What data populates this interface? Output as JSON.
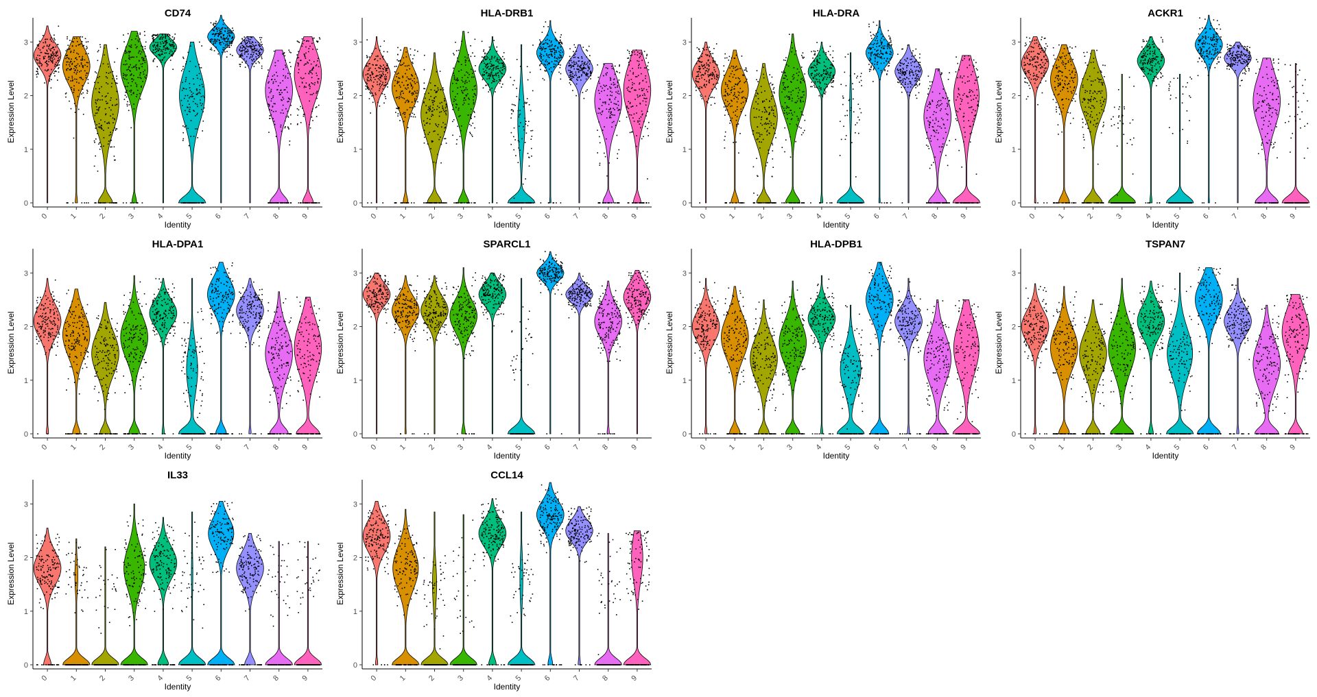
{
  "figure": {
    "xlabel": "Identity",
    "ylabel": "Expression Level",
    "categories": [
      "0",
      "1",
      "2",
      "3",
      "4",
      "5",
      "6",
      "7",
      "8",
      "9"
    ],
    "yticks": [
      0,
      1,
      2,
      3
    ],
    "ylim": [
      0,
      3.4
    ],
    "palette": [
      "#F8766D",
      "#D89000",
      "#A3A500",
      "#39B600",
      "#00BF7D",
      "#00BFC4",
      "#00B0F6",
      "#9590FF",
      "#E76BF3",
      "#FF62BC"
    ],
    "point_color": "#000000"
  },
  "chart_data": [
    {
      "type": "violin",
      "title": "CD74",
      "series": [
        {
          "name": "0",
          "zero_fraction": 0.01,
          "center": 2.75,
          "spread": 0.22,
          "max": 3.3
        },
        {
          "name": "1",
          "zero_fraction": 0.05,
          "center": 2.55,
          "spread": 0.32,
          "max": 3.1
        },
        {
          "name": "2",
          "zero_fraction": 0.25,
          "center": 1.85,
          "spread": 0.5,
          "max": 2.95
        },
        {
          "name": "3",
          "zero_fraction": 0.1,
          "center": 2.5,
          "spread": 0.4,
          "max": 3.2
        },
        {
          "name": "4",
          "zero_fraction": 0.0,
          "center": 2.9,
          "spread": 0.15,
          "max": 3.15
        },
        {
          "name": "5",
          "zero_fraction": 0.4,
          "center": 2.0,
          "spread": 0.5,
          "max": 3.0
        },
        {
          "name": "6",
          "zero_fraction": 0.0,
          "center": 3.1,
          "spread": 0.15,
          "max": 3.5
        },
        {
          "name": "7",
          "zero_fraction": 0.0,
          "center": 2.85,
          "spread": 0.15,
          "max": 3.1
        },
        {
          "name": "8",
          "zero_fraction": 0.3,
          "center": 2.1,
          "spread": 0.45,
          "max": 2.85
        },
        {
          "name": "9",
          "zero_fraction": 0.2,
          "center": 2.4,
          "spread": 0.45,
          "max": 3.1
        }
      ]
    },
    {
      "type": "violin",
      "title": "HLA-DRB1",
      "series": [
        {
          "name": "0",
          "zero_fraction": 0.02,
          "center": 2.4,
          "spread": 0.25,
          "max": 3.1
        },
        {
          "name": "1",
          "zero_fraction": 0.1,
          "center": 2.15,
          "spread": 0.35,
          "max": 2.9
        },
        {
          "name": "2",
          "zero_fraction": 0.25,
          "center": 1.65,
          "spread": 0.45,
          "max": 2.8
        },
        {
          "name": "3",
          "zero_fraction": 0.2,
          "center": 2.1,
          "spread": 0.45,
          "max": 3.2
        },
        {
          "name": "4",
          "zero_fraction": 0.02,
          "center": 2.5,
          "spread": 0.2,
          "max": 3.1
        },
        {
          "name": "5",
          "zero_fraction": 0.7,
          "center": 1.5,
          "spread": 0.5,
          "max": 2.95
        },
        {
          "name": "6",
          "zero_fraction": 0.03,
          "center": 2.8,
          "spread": 0.2,
          "max": 3.4
        },
        {
          "name": "7",
          "zero_fraction": 0.0,
          "center": 2.5,
          "spread": 0.2,
          "max": 2.95
        },
        {
          "name": "8",
          "zero_fraction": 0.2,
          "center": 1.9,
          "spread": 0.45,
          "max": 2.6
        },
        {
          "name": "9",
          "zero_fraction": 0.15,
          "center": 2.1,
          "spread": 0.5,
          "max": 2.85
        }
      ]
    },
    {
      "type": "violin",
      "title": "HLA-DRA",
      "series": [
        {
          "name": "0",
          "zero_fraction": 0.02,
          "center": 2.4,
          "spread": 0.25,
          "max": 3.0
        },
        {
          "name": "1",
          "zero_fraction": 0.15,
          "center": 2.1,
          "spread": 0.35,
          "max": 2.85
        },
        {
          "name": "2",
          "zero_fraction": 0.25,
          "center": 1.6,
          "spread": 0.45,
          "max": 2.6
        },
        {
          "name": "3",
          "zero_fraction": 0.25,
          "center": 2.05,
          "spread": 0.45,
          "max": 3.15
        },
        {
          "name": "4",
          "zero_fraction": 0.05,
          "center": 2.45,
          "spread": 0.2,
          "max": 3.0
        },
        {
          "name": "5",
          "zero_fraction": 0.9,
          "center": 1.8,
          "spread": 0.45,
          "max": 2.8
        },
        {
          "name": "6",
          "zero_fraction": 0.03,
          "center": 2.8,
          "spread": 0.2,
          "max": 3.4
        },
        {
          "name": "7",
          "zero_fraction": 0.02,
          "center": 2.45,
          "spread": 0.2,
          "max": 2.95
        },
        {
          "name": "8",
          "zero_fraction": 0.3,
          "center": 1.6,
          "spread": 0.45,
          "max": 2.5
        },
        {
          "name": "9",
          "zero_fraction": 0.4,
          "center": 2.0,
          "spread": 0.5,
          "max": 2.75
        }
      ]
    },
    {
      "type": "violin",
      "title": "ACKR1",
      "series": [
        {
          "name": "0",
          "zero_fraction": 0.03,
          "center": 2.6,
          "spread": 0.25,
          "max": 3.1
        },
        {
          "name": "1",
          "zero_fraction": 0.2,
          "center": 2.3,
          "spread": 0.35,
          "max": 2.95
        },
        {
          "name": "2",
          "zero_fraction": 0.3,
          "center": 2.0,
          "spread": 0.4,
          "max": 2.85
        },
        {
          "name": "3",
          "zero_fraction": 0.97,
          "center": 1.6,
          "spread": 0.5,
          "max": 2.4
        },
        {
          "name": "4",
          "zero_fraction": 0.05,
          "center": 2.65,
          "spread": 0.2,
          "max": 3.1
        },
        {
          "name": "5",
          "zero_fraction": 0.98,
          "center": 1.8,
          "spread": 0.5,
          "max": 2.4
        },
        {
          "name": "6",
          "zero_fraction": 0.03,
          "center": 2.95,
          "spread": 0.2,
          "max": 3.5
        },
        {
          "name": "7",
          "zero_fraction": 0.0,
          "center": 2.7,
          "spread": 0.15,
          "max": 3.0
        },
        {
          "name": "8",
          "zero_fraction": 0.35,
          "center": 1.9,
          "spread": 0.5,
          "max": 2.7
        },
        {
          "name": "9",
          "zero_fraction": 0.97,
          "center": 1.8,
          "spread": 0.5,
          "max": 2.6
        }
      ]
    },
    {
      "type": "violin",
      "title": "HLA-DPA1",
      "series": [
        {
          "name": "0",
          "zero_fraction": 0.05,
          "center": 2.1,
          "spread": 0.3,
          "max": 2.9
        },
        {
          "name": "1",
          "zero_fraction": 0.15,
          "center": 1.85,
          "spread": 0.4,
          "max": 2.7
        },
        {
          "name": "2",
          "zero_fraction": 0.2,
          "center": 1.5,
          "spread": 0.4,
          "max": 2.45
        },
        {
          "name": "3",
          "zero_fraction": 0.2,
          "center": 1.8,
          "spread": 0.4,
          "max": 2.95
        },
        {
          "name": "4",
          "zero_fraction": 0.05,
          "center": 2.25,
          "spread": 0.25,
          "max": 2.9
        },
        {
          "name": "5",
          "zero_fraction": 0.6,
          "center": 1.2,
          "spread": 0.45,
          "max": 2.9
        },
        {
          "name": "6",
          "zero_fraction": 0.2,
          "center": 2.6,
          "spread": 0.3,
          "max": 3.2
        },
        {
          "name": "7",
          "zero_fraction": 0.05,
          "center": 2.3,
          "spread": 0.25,
          "max": 2.9
        },
        {
          "name": "8",
          "zero_fraction": 0.3,
          "center": 1.5,
          "spread": 0.45,
          "max": 2.65
        },
        {
          "name": "9",
          "zero_fraction": 0.35,
          "center": 1.6,
          "spread": 0.5,
          "max": 2.55
        }
      ]
    },
    {
      "type": "violin",
      "title": "SPARCL1",
      "series": [
        {
          "name": "0",
          "zero_fraction": 0.0,
          "center": 2.6,
          "spread": 0.2,
          "max": 3.0
        },
        {
          "name": "1",
          "zero_fraction": 0.03,
          "center": 2.3,
          "spread": 0.25,
          "max": 2.95
        },
        {
          "name": "2",
          "zero_fraction": 0.02,
          "center": 2.3,
          "spread": 0.25,
          "max": 2.95
        },
        {
          "name": "3",
          "zero_fraction": 0.08,
          "center": 2.2,
          "spread": 0.3,
          "max": 3.1
        },
        {
          "name": "4",
          "zero_fraction": 0.0,
          "center": 2.6,
          "spread": 0.2,
          "max": 3.0
        },
        {
          "name": "5",
          "zero_fraction": 0.97,
          "center": 1.5,
          "spread": 0.5,
          "max": 2.9
        },
        {
          "name": "6",
          "zero_fraction": 0.02,
          "center": 3.0,
          "spread": 0.15,
          "max": 3.4
        },
        {
          "name": "7",
          "zero_fraction": 0.0,
          "center": 2.6,
          "spread": 0.15,
          "max": 3.0
        },
        {
          "name": "8",
          "zero_fraction": 0.05,
          "center": 2.1,
          "spread": 0.3,
          "max": 2.85
        },
        {
          "name": "9",
          "zero_fraction": 0.0,
          "center": 2.55,
          "spread": 0.25,
          "max": 3.05
        }
      ]
    },
    {
      "type": "violin",
      "title": "HLA-DPB1",
      "series": [
        {
          "name": "0",
          "zero_fraction": 0.05,
          "center": 2.0,
          "spread": 0.3,
          "max": 2.9
        },
        {
          "name": "1",
          "zero_fraction": 0.2,
          "center": 1.8,
          "spread": 0.4,
          "max": 2.75
        },
        {
          "name": "2",
          "zero_fraction": 0.2,
          "center": 1.4,
          "spread": 0.4,
          "max": 2.5
        },
        {
          "name": "3",
          "zero_fraction": 0.25,
          "center": 1.7,
          "spread": 0.4,
          "max": 2.85
        },
        {
          "name": "4",
          "zero_fraction": 0.05,
          "center": 2.15,
          "spread": 0.25,
          "max": 2.95
        },
        {
          "name": "5",
          "zero_fraction": 0.45,
          "center": 1.2,
          "spread": 0.4,
          "max": 2.4
        },
        {
          "name": "6",
          "zero_fraction": 0.3,
          "center": 2.5,
          "spread": 0.35,
          "max": 3.2
        },
        {
          "name": "7",
          "zero_fraction": 0.05,
          "center": 2.1,
          "spread": 0.25,
          "max": 2.9
        },
        {
          "name": "8",
          "zero_fraction": 0.3,
          "center": 1.4,
          "spread": 0.45,
          "max": 2.5
        },
        {
          "name": "9",
          "zero_fraction": 0.4,
          "center": 1.6,
          "spread": 0.5,
          "max": 2.5
        }
      ]
    },
    {
      "type": "violin",
      "title": "TSPAN7",
      "series": [
        {
          "name": "0",
          "zero_fraction": 0.05,
          "center": 2.0,
          "spread": 0.3,
          "max": 2.8
        },
        {
          "name": "1",
          "zero_fraction": 0.2,
          "center": 1.6,
          "spread": 0.4,
          "max": 2.75
        },
        {
          "name": "2",
          "zero_fraction": 0.25,
          "center": 1.5,
          "spread": 0.4,
          "max": 2.5
        },
        {
          "name": "3",
          "zero_fraction": 0.35,
          "center": 1.6,
          "spread": 0.45,
          "max": 2.9
        },
        {
          "name": "4",
          "zero_fraction": 0.1,
          "center": 2.1,
          "spread": 0.3,
          "max": 2.85
        },
        {
          "name": "5",
          "zero_fraction": 0.4,
          "center": 1.5,
          "spread": 0.45,
          "max": 3.0
        },
        {
          "name": "6",
          "zero_fraction": 0.35,
          "center": 2.5,
          "spread": 0.35,
          "max": 3.1
        },
        {
          "name": "7",
          "zero_fraction": 0.05,
          "center": 2.1,
          "spread": 0.25,
          "max": 2.9
        },
        {
          "name": "8",
          "zero_fraction": 0.35,
          "center": 1.3,
          "spread": 0.45,
          "max": 2.4
        },
        {
          "name": "9",
          "zero_fraction": 0.25,
          "center": 1.9,
          "spread": 0.45,
          "max": 2.6
        }
      ]
    },
    {
      "type": "violin",
      "title": "IL33",
      "series": [
        {
          "name": "0",
          "zero_fraction": 0.15,
          "center": 1.8,
          "spread": 0.3,
          "max": 2.55
        },
        {
          "name": "1",
          "zero_fraction": 0.85,
          "center": 1.65,
          "spread": 0.3,
          "max": 2.35
        },
        {
          "name": "2",
          "zero_fraction": 0.95,
          "center": 1.4,
          "spread": 0.4,
          "max": 2.2
        },
        {
          "name": "3",
          "zero_fraction": 0.45,
          "center": 1.8,
          "spread": 0.4,
          "max": 3.0
        },
        {
          "name": "4",
          "zero_fraction": 0.2,
          "center": 1.9,
          "spread": 0.3,
          "max": 2.75
        },
        {
          "name": "5",
          "zero_fraction": 0.92,
          "center": 1.7,
          "spread": 0.4,
          "max": 2.85
        },
        {
          "name": "6",
          "zero_fraction": 0.4,
          "center": 2.45,
          "spread": 0.3,
          "max": 3.05
        },
        {
          "name": "7",
          "zero_fraction": 0.2,
          "center": 1.8,
          "spread": 0.3,
          "max": 2.45
        },
        {
          "name": "8",
          "zero_fraction": 0.97,
          "center": 1.6,
          "spread": 0.4,
          "max": 2.3
        },
        {
          "name": "9",
          "zero_fraction": 0.97,
          "center": 1.7,
          "spread": 0.4,
          "max": 2.3
        }
      ]
    },
    {
      "type": "violin",
      "title": "CCL14",
      "series": [
        {
          "name": "0",
          "zero_fraction": 0.05,
          "center": 2.4,
          "spread": 0.3,
          "max": 3.05
        },
        {
          "name": "1",
          "zero_fraction": 0.4,
          "center": 1.8,
          "spread": 0.4,
          "max": 2.9
        },
        {
          "name": "2",
          "zero_fraction": 0.8,
          "center": 1.5,
          "spread": 0.4,
          "max": 2.85
        },
        {
          "name": "3",
          "zero_fraction": 0.98,
          "center": 1.6,
          "spread": 0.5,
          "max": 2.8
        },
        {
          "name": "4",
          "zero_fraction": 0.15,
          "center": 2.45,
          "spread": 0.25,
          "max": 3.1
        },
        {
          "name": "5",
          "zero_fraction": 0.85,
          "center": 1.6,
          "spread": 0.45,
          "max": 2.85
        },
        {
          "name": "6",
          "zero_fraction": 0.1,
          "center": 2.8,
          "spread": 0.25,
          "max": 3.4
        },
        {
          "name": "7",
          "zero_fraction": 0.05,
          "center": 2.5,
          "spread": 0.2,
          "max": 2.95
        },
        {
          "name": "8",
          "zero_fraction": 0.95,
          "center": 1.5,
          "spread": 0.45,
          "max": 2.45
        },
        {
          "name": "9",
          "zero_fraction": 0.6,
          "center": 2.0,
          "spread": 0.45,
          "max": 2.5
        }
      ]
    }
  ]
}
